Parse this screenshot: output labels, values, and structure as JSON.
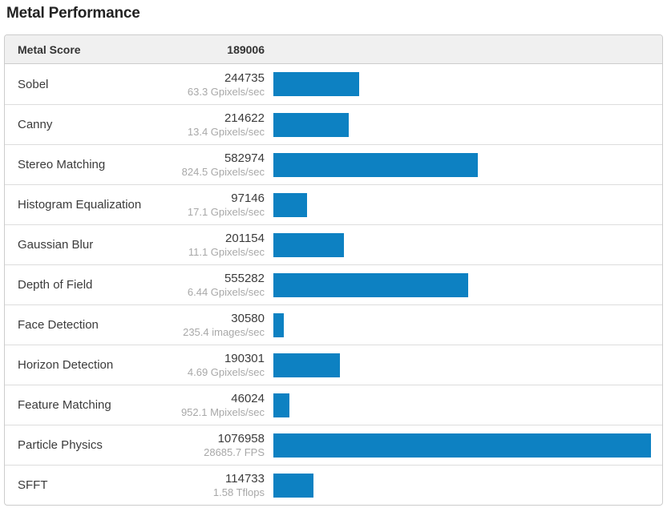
{
  "title": "Metal Performance",
  "colors": {
    "bar": "#0d81c2",
    "header_bg": "#f0f0f0",
    "border": "#cccccc",
    "divider": "#dddddd",
    "label_text": "#3b3b3b",
    "rate_text": "#a8a8a8"
  },
  "summary": {
    "label": "Metal Score",
    "value": "189006"
  },
  "rows": [
    {
      "label": "Sobel",
      "score": 244735,
      "rate": "63.3 Gpixels/sec"
    },
    {
      "label": "Canny",
      "score": 214622,
      "rate": "13.4 Gpixels/sec"
    },
    {
      "label": "Stereo Matching",
      "score": 582974,
      "rate": "824.5 Gpixels/sec"
    },
    {
      "label": "Histogram Equalization",
      "score": 97146,
      "rate": "17.1 Gpixels/sec"
    },
    {
      "label": "Gaussian Blur",
      "score": 201154,
      "rate": "11.1 Gpixels/sec"
    },
    {
      "label": "Depth of Field",
      "score": 555282,
      "rate": "6.44 Gpixels/sec"
    },
    {
      "label": "Face Detection",
      "score": 30580,
      "rate": "235.4 images/sec"
    },
    {
      "label": "Horizon Detection",
      "score": 190301,
      "rate": "4.69 Gpixels/sec"
    },
    {
      "label": "Feature Matching",
      "score": 46024,
      "rate": "952.1 Mpixels/sec"
    },
    {
      "label": "Particle Physics",
      "score": 1076958,
      "rate": "28685.7 FPS"
    },
    {
      "label": "SFFT",
      "score": 114733,
      "rate": "1.58 Tflops"
    }
  ],
  "chart_data": {
    "type": "bar",
    "orientation": "horizontal",
    "title": "Metal Performance",
    "summary_label": "Metal Score",
    "summary_value": 189006,
    "categories": [
      "Sobel",
      "Canny",
      "Stereo Matching",
      "Histogram Equalization",
      "Gaussian Blur",
      "Depth of Field",
      "Face Detection",
      "Horizon Detection",
      "Feature Matching",
      "Particle Physics",
      "SFFT"
    ],
    "values": [
      244735,
      214622,
      582974,
      97146,
      201154,
      555282,
      30580,
      190301,
      46024,
      1076958,
      114733
    ],
    "value_labels": [
      "63.3 Gpixels/sec",
      "13.4 Gpixels/sec",
      "824.5 Gpixels/sec",
      "17.1 Gpixels/sec",
      "11.1 Gpixels/sec",
      "6.44 Gpixels/sec",
      "235.4 images/sec",
      "4.69 Gpixels/sec",
      "952.1 Mpixels/sec",
      "28685.7 FPS",
      "1.58 Tflops"
    ],
    "xlim": [
      0,
      1076958
    ],
    "xlabel": "",
    "ylabel": "",
    "grid": false,
    "legend": "none",
    "bar_color": "#0d81c2"
  }
}
